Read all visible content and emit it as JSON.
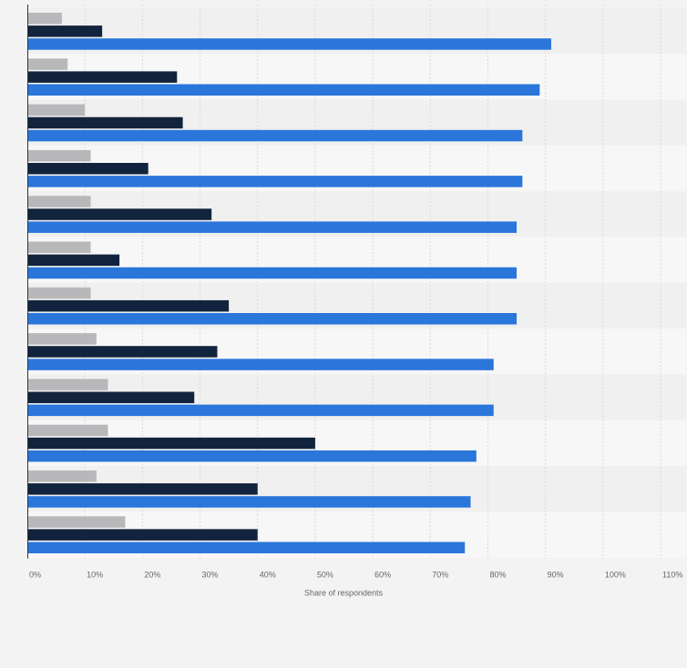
{
  "colors": {
    "background": "#f3f3f3",
    "band_dark": "#f0f0f0",
    "band_light": "#f7f7f8",
    "gridline": "#d9d9d9",
    "axis": "#333333",
    "series_1": "#2a76db",
    "series_2": "#12243d",
    "series_3": "#b8b8ba"
  },
  "chart_data": {
    "type": "bar",
    "orientation": "horizontal",
    "title": "",
    "xlabel": "Share of respondents",
    "ylabel": "",
    "xlim": [
      0,
      110
    ],
    "x_ticks": [
      0,
      10,
      20,
      30,
      40,
      50,
      60,
      70,
      80,
      90,
      100,
      110
    ],
    "x_tick_labels": [
      "0%",
      "10%",
      "20%",
      "30%",
      "40%",
      "50%",
      "60%",
      "70%",
      "80%",
      "90%",
      "100%",
      "110%"
    ],
    "categories": [
      "",
      "",
      "",
      "",
      "",
      "",
      "",
      "",
      "",
      "",
      "",
      ""
    ],
    "grid": true,
    "legend": "none",
    "series": [
      {
        "color": "#b8b8ba",
        "values": [
          6,
          7,
          10,
          11,
          11,
          11,
          11,
          12,
          14,
          14,
          12,
          17
        ]
      },
      {
        "color": "#12243d",
        "values": [
          13,
          26,
          27,
          21,
          32,
          16,
          35,
          33,
          29,
          50,
          40,
          40
        ]
      },
      {
        "color": "#2a76db",
        "values": [
          91,
          89,
          86,
          86,
          85,
          85,
          85,
          81,
          81,
          78,
          77,
          76
        ]
      }
    ]
  }
}
